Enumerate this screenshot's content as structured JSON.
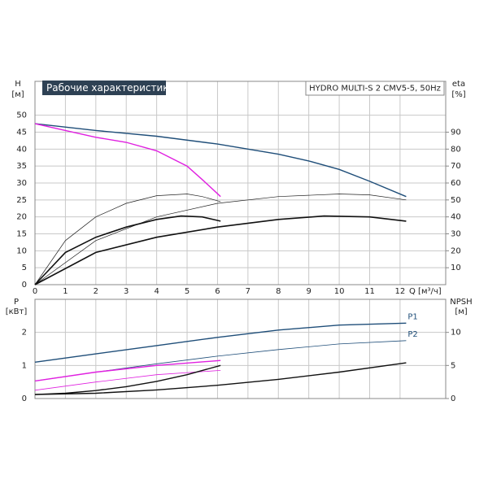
{
  "chart_data": [
    {
      "type": "line",
      "title": "Рабочие характеристики",
      "subtitle": "HYDRO MULTI-S 2 CMV5-5, 50Hz",
      "ylabel": "H",
      "yunit": "[м]",
      "y2label": "eta",
      "y2unit": "[%]",
      "xlabel": "Q [м³/ч]",
      "xlim": [
        0,
        13.5
      ],
      "xticks": [
        0,
        1,
        2,
        3,
        4,
        5,
        6,
        7,
        8,
        9,
        10,
        11,
        12
      ],
      "ylim": [
        0,
        60
      ],
      "yticks": [
        0,
        5,
        10,
        15,
        20,
        25,
        30,
        35,
        40,
        45,
        50
      ],
      "y2lim": [
        0,
        120
      ],
      "y2ticks": [
        10,
        20,
        30,
        40,
        50,
        60,
        70,
        80,
        90
      ],
      "grid": true,
      "series": [
        {
          "color": "#1f4e79",
          "width": 1.4,
          "x": [
            0,
            2,
            4,
            6,
            8,
            9,
            10,
            11,
            12.2
          ],
          "values": [
            47.5,
            45.5,
            43.8,
            41.5,
            38.5,
            36.5,
            34,
            30.5,
            26
          ]
        },
        {
          "color": "#e020e0",
          "width": 1.4,
          "x": [
            0,
            1,
            2,
            3,
            4,
            5,
            5.5,
            6.1
          ],
          "values": [
            47.5,
            45.5,
            43.5,
            42,
            39.5,
            35,
            31,
            26
          ]
        },
        {
          "color": "#222222",
          "width": 0.7,
          "axis": "y2",
          "x": [
            0,
            1,
            2,
            3,
            4,
            5,
            5.5,
            6.1
          ],
          "values": [
            0,
            26,
            40,
            48,
            52.5,
            53.5,
            52,
            49
          ]
        },
        {
          "color": "#222222",
          "width": 0.7,
          "axis": "y2",
          "x": [
            0,
            2,
            4,
            6,
            8,
            10,
            11,
            12.2
          ],
          "values": [
            0,
            26,
            40,
            48,
            52,
            53.5,
            53,
            50
          ]
        },
        {
          "color": "#111111",
          "width": 1.6,
          "axis": "y2",
          "x": [
            0,
            1,
            2,
            3,
            4,
            4.8,
            5.5,
            6.1
          ],
          "values": [
            0,
            19,
            28,
            34,
            38.5,
            40.5,
            40,
            37.5
          ]
        },
        {
          "color": "#111111",
          "width": 1.6,
          "axis": "y2",
          "x": [
            0,
            2,
            4,
            6,
            8,
            9.5,
            11,
            12.2
          ],
          "values": [
            0,
            19,
            28,
            34,
            38.5,
            40.5,
            40,
            37.5
          ]
        }
      ]
    },
    {
      "type": "line",
      "ylabel": "P",
      "yunit": "[кВт]",
      "y2label": "NPSH",
      "y2unit": "[м]",
      "xlim": [
        0,
        13.5
      ],
      "ylim": [
        0,
        3
      ],
      "yticks": [
        0,
        1,
        2
      ],
      "y2lim": [
        0,
        15
      ],
      "y2ticks": [
        0,
        5,
        10
      ],
      "grid": true,
      "series": [
        {
          "name": "P1",
          "color": "#1f4e79",
          "width": 1.4,
          "x": [
            0,
            2,
            4,
            6,
            8,
            10,
            12.2
          ],
          "values": [
            1.1,
            1.35,
            1.6,
            1.85,
            2.07,
            2.22,
            2.28
          ]
        },
        {
          "name": "P2",
          "color": "#1f4e79",
          "width": 0.8,
          "x": [
            0,
            2,
            4,
            6,
            8,
            10,
            12.2
          ],
          "values": [
            0.53,
            0.8,
            1.05,
            1.28,
            1.48,
            1.65,
            1.75
          ]
        },
        {
          "color": "#e020e0",
          "width": 1.4,
          "x": [
            0,
            2,
            4,
            6.1
          ],
          "values": [
            0.53,
            0.8,
            1.0,
            1.15
          ]
        },
        {
          "color": "#e020e0",
          "width": 0.8,
          "x": [
            0,
            2,
            4,
            6.1
          ],
          "values": [
            0.25,
            0.5,
            0.72,
            0.85
          ]
        },
        {
          "color": "#111111",
          "width": 1.4,
          "axis": "y2",
          "x": [
            0,
            1,
            2,
            3,
            4,
            5,
            6.1
          ],
          "values": [
            0.6,
            0.8,
            1.2,
            1.8,
            2.6,
            3.6,
            5.0
          ]
        },
        {
          "color": "#111111",
          "width": 1.4,
          "axis": "y2",
          "x": [
            0,
            2,
            4,
            6,
            8,
            10,
            12.2
          ],
          "values": [
            0.6,
            0.8,
            1.3,
            2.0,
            2.9,
            4.0,
            5.4
          ]
        }
      ]
    }
  ]
}
